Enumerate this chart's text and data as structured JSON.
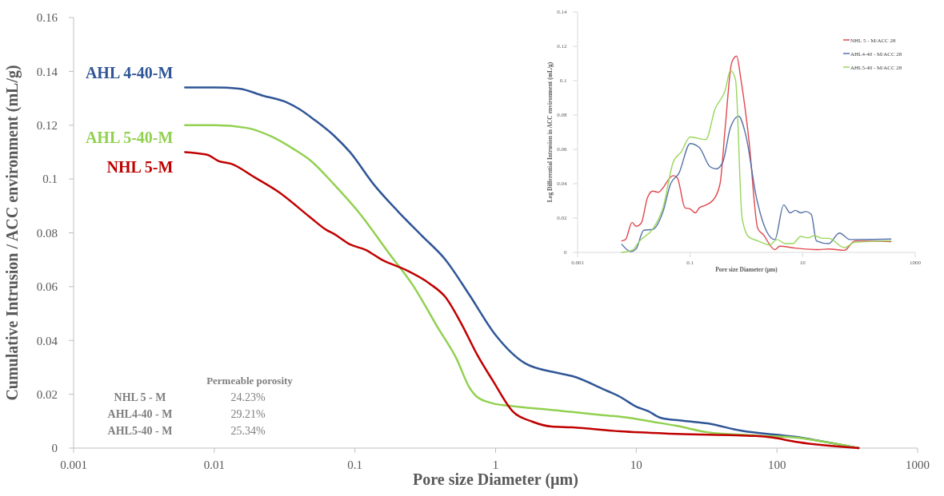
{
  "chart_data": [
    {
      "type": "line",
      "xlabel": "Pore size Diameter (µm)",
      "ylabel": "Cumulative Intrusion / ACC environment  (mL/g)",
      "log": "x",
      "xlim": [
        0.001,
        1000
      ],
      "ylim": [
        0,
        0.16
      ],
      "xticks": [
        0.001,
        0.01,
        0.1,
        1,
        10,
        100,
        1000
      ],
      "yticks": [
        0,
        0.02,
        0.04,
        0.06,
        0.08,
        0.1,
        0.12,
        0.14,
        0.16
      ],
      "legend": false,
      "series": [
        {
          "name": "AHL 4-40-M",
          "color": "#2f5597",
          "x": [
            0.0062,
            0.0101,
            0.015,
            0.0221,
            0.0327,
            0.0402,
            0.0515,
            0.0714,
            0.0922,
            0.136,
            0.202,
            0.298,
            0.44,
            0.65,
            1.0,
            1.62,
            2.73,
            3.53,
            5.94,
            7.7,
            10,
            12.2,
            14.8,
            21.9,
            32,
            55,
            134,
            381
          ],
          "values": [
            0.134,
            0.134,
            0.1336,
            0.131,
            0.1285,
            0.126,
            0.122,
            0.116,
            0.11,
            0.098,
            0.088,
            0.079,
            0.07,
            0.057,
            0.042,
            0.0315,
            0.028,
            0.0267,
            0.0217,
            0.019,
            0.0154,
            0.0137,
            0.0113,
            0.0101,
            0.0092,
            0.0065,
            0.0042,
            0
          ]
        },
        {
          "name": "AHL 5-40-M",
          "color": "#92d050",
          "x": [
            0.0062,
            0.0101,
            0.017,
            0.025,
            0.037,
            0.048,
            0.071,
            0.105,
            0.177,
            0.262,
            0.386,
            0.53,
            0.65,
            0.74,
            0.96,
            1.25,
            2.73,
            3.5,
            5.94,
            8.8,
            13,
            19.2,
            32,
            70,
            134,
            381
          ],
          "values": [
            0.12,
            0.12,
            0.119,
            0.116,
            0.111,
            0.107,
            0.098,
            0.088,
            0.072,
            0.06,
            0.045,
            0.033,
            0.0226,
            0.019,
            0.0166,
            0.0157,
            0.014,
            0.0134,
            0.0122,
            0.0113,
            0.0098,
            0.0083,
            0.0059,
            0.0047,
            0.0039,
            0
          ]
        },
        {
          "name": "NHL 5-M",
          "color": "#c00000",
          "x": [
            0.0062,
            0.0089,
            0.0108,
            0.0131,
            0.0194,
            0.0285,
            0.048,
            0.063,
            0.071,
            0.092,
            0.12,
            0.155,
            0.23,
            0.34,
            0.44,
            0.57,
            0.74,
            0.96,
            1.32,
            1.83,
            2.5,
            3.5,
            7.7,
            19.2,
            70,
            93,
            134,
            381
          ],
          "values": [
            0.11,
            0.109,
            0.1066,
            0.1057,
            0.1006,
            0.0953,
            0.0858,
            0.081,
            0.0796,
            0.0757,
            0.0736,
            0.07,
            0.0662,
            0.0611,
            0.0561,
            0.0463,
            0.0347,
            0.0249,
            0.0137,
            0.0098,
            0.008,
            0.0077,
            0.0062,
            0.0053,
            0.0045,
            0.0039,
            0.0024,
            0
          ]
        }
      ],
      "annotations": [
        "Permeable porosity",
        "NHL 5 - M",
        "24.23%",
        "AHL4-40 - M",
        "29.21%",
        "AHL5-40 - M",
        "25.34%"
      ]
    },
    {
      "type": "line",
      "xlabel": "Pore size Diameter (µm)",
      "ylabel": "Log Differential Intrusion in ACC environment (mL/g)",
      "log": "x",
      "xlim": [
        0.001,
        1000
      ],
      "ylim": [
        0,
        0.14
      ],
      "xticks": [
        0.001,
        0.1,
        10,
        1000
      ],
      "yticks": [
        0,
        0.02,
        0.04,
        0.06,
        0.08,
        0.1,
        0.12,
        0.14
      ],
      "legend": "top right",
      "series": [
        {
          "name": "NHL 5 - M/ACC 28",
          "color": "#e0474c",
          "x": [
            0.0061,
            0.0071,
            0.0093,
            0.0109,
            0.0135,
            0.0175,
            0.0217,
            0.0268,
            0.05,
            0.059,
            0.081,
            0.1,
            0.124,
            0.146,
            0.181,
            0.26,
            0.34,
            0.42,
            0.55,
            0.67,
            0.8,
            1.1,
            1.6,
            1.97,
            3.2,
            3.9,
            7.4,
            19.2,
            29,
            55,
            85,
            370
          ],
          "values": [
            0.0067,
            0.0075,
            0.0175,
            0.0152,
            0.017,
            0.032,
            0.0357,
            0.035,
            0.0447,
            0.0435,
            0.026,
            0.0253,
            0.023,
            0.026,
            0.0273,
            0.0307,
            0.04,
            0.0727,
            0.1107,
            0.1143,
            0.1006,
            0.0665,
            0.0137,
            0.0106,
            0.0016,
            0.0036,
            0.0025,
            0.0016,
            0.002,
            0.0012,
            0.0067,
            0.0062
          ]
        },
        {
          "name": "AHL4-40 - M/ACC 28",
          "color": "#5470a8",
          "x": [
            0.0061,
            0.0088,
            0.0109,
            0.015,
            0.0217,
            0.033,
            0.045,
            0.063,
            0.1,
            0.146,
            0.224,
            0.29,
            0.38,
            0.52,
            0.73,
            0.98,
            1.5,
            2.3,
            3.2,
            4.6,
            6.0,
            7.4,
            9.2,
            11.4,
            14.2,
            17.6,
            29,
            45,
            69,
            370
          ],
          "values": [
            0.0047,
            0.0005,
            0.002,
            0.0129,
            0.0134,
            0.0238,
            0.04,
            0.046,
            0.0634,
            0.061,
            0.05,
            0.0486,
            0.0525,
            0.0727,
            0.0793,
            0.068,
            0.0323,
            0.0121,
            0.0075,
            0.0276,
            0.023,
            0.0245,
            0.023,
            0.0238,
            0.0222,
            0.0067,
            0.0051,
            0.0113,
            0.0075,
            0.0078
          ]
        },
        {
          "name": "AHL5-40 - M/ACC 28",
          "color": "#99d65c",
          "x": [
            0.0061,
            0.0093,
            0.0127,
            0.0217,
            0.033,
            0.05,
            0.07,
            0.1,
            0.19,
            0.277,
            0.42,
            0.52,
            0.64,
            0.84,
            1.1,
            1.6,
            2.6,
            3.5,
            4.9,
            6.7,
            9.2,
            12.5,
            16.2,
            22.3,
            29,
            55,
            85,
            370
          ],
          "values": [
            0,
            0.0012,
            0.0067,
            0.0137,
            0.026,
            0.0525,
            0.0587,
            0.0672,
            0.0657,
            0.0835,
            0.0944,
            0.106,
            0.1006,
            0.0199,
            0.009,
            0.0067,
            0.0043,
            0.0075,
            0.0051,
            0.0051,
            0.0093,
            0.0085,
            0.0098,
            0.0082,
            0.0082,
            0.0028,
            0.0059,
            0.0067
          ]
        }
      ]
    }
  ]
}
